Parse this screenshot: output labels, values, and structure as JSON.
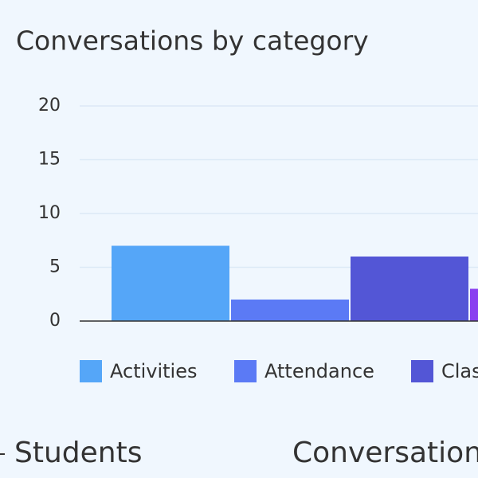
{
  "chart_data": {
    "type": "bar",
    "title": "Conversations by category",
    "categories": [
      "Activities",
      "Attendance",
      "Clas",
      null
    ],
    "values": [
      7,
      2,
      6,
      3
    ],
    "colors": [
      "#55a6f8",
      "#5b7af5",
      "#5356d6",
      "#8a3ff0"
    ],
    "ylim": [
      0,
      20
    ],
    "yticks": [
      0,
      5,
      10,
      15,
      20
    ],
    "grid": true
  },
  "headings": [
    "Students",
    "Conversation"
  ]
}
